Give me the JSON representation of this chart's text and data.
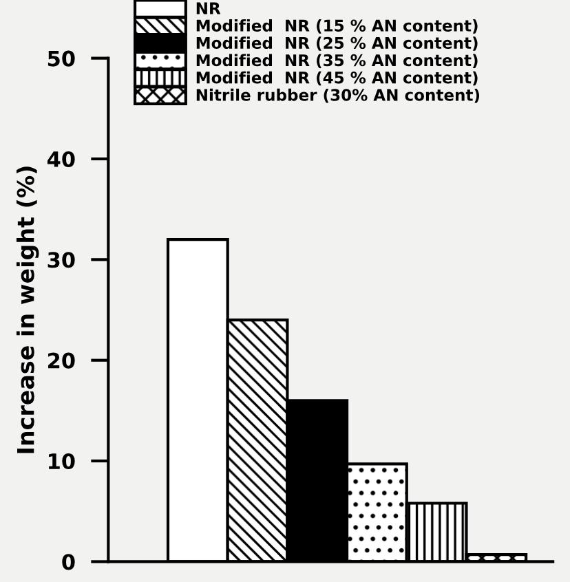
{
  "chart_data": {
    "type": "bar",
    "ylabel": "Increase in weight (%)",
    "categories": [
      null,
      null,
      null,
      null,
      null,
      null
    ],
    "series": [
      {
        "name": "NR",
        "color": "#ffffff",
        "values": [
          32,
          null,
          null,
          null,
          null,
          null
        ]
      },
      {
        "name": "Modified  NR (15 % AN content)",
        "color": "#000000",
        "values": [
          null,
          24,
          null,
          null,
          null,
          null
        ]
      },
      {
        "name": "Modified  NR (25 % AN content)",
        "color": "#000000",
        "values": [
          null,
          null,
          16,
          null,
          null,
          null
        ]
      },
      {
        "name": "Modified  NR (35 % AN content)",
        "color": "#000000",
        "values": [
          null,
          null,
          null,
          9.7,
          null,
          null
        ]
      },
      {
        "name": "Modified  NR (45 % AN content)",
        "color": "#000000",
        "values": [
          null,
          null,
          null,
          null,
          5.8,
          null
        ]
      },
      {
        "name": "Nitrile rubber (30% AN content)",
        "color": "#000000",
        "values": [
          null,
          null,
          null,
          null,
          null,
          0.7
        ]
      }
    ],
    "stacked": true,
    "ylim": [
      0,
      50
    ],
    "yticks": [
      0,
      10,
      20,
      30,
      40,
      50
    ],
    "tick_labels": "y",
    "legend": "top",
    "grid": false
  }
}
